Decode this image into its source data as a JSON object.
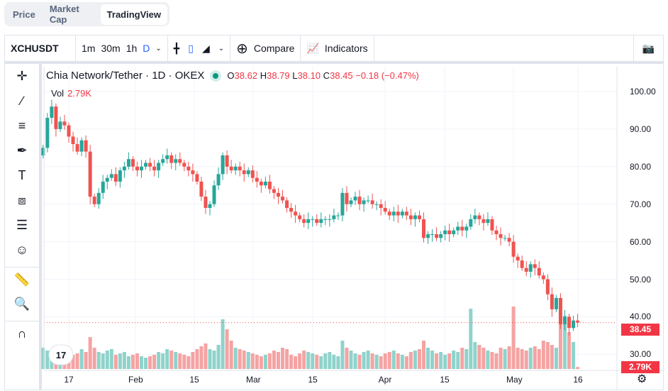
{
  "tabs": [
    "Price",
    "Market Cap",
    "TradingView"
  ],
  "toolbar": {
    "symbol": "XCHUSDT",
    "intervals": [
      "1m",
      "30m",
      "1h",
      "D"
    ],
    "compare": "Compare",
    "indicators": "Indicators"
  },
  "legend": {
    "title": "Chia Network/Tether · 1D · OKEX",
    "o_label": "O",
    "o": "38.62",
    "h_label": "H",
    "h": "38.79",
    "l_label": "L",
    "l": "38.10",
    "c_label": "C",
    "c": "38.45",
    "change": "−0.18 (−0.47%)",
    "vol_label": "Vol",
    "vol": "2.79K"
  },
  "colors": {
    "up": "#26a69a",
    "down": "#ef5350",
    "accent": "#2962ff"
  },
  "chart_data": {
    "type": "candlestick",
    "price_axis": [
      "100.00",
      "90.00",
      "80.00",
      "70.00",
      "60.00",
      "50.00",
      "40.00",
      "30.00"
    ],
    "time_axis": [
      "17",
      "Feb",
      "15",
      "Mar",
      "15",
      "Apr",
      "15",
      "May",
      "16"
    ],
    "last_price": "38.45",
    "last_volume": "2.79K",
    "close": [
      85,
      93,
      96,
      90,
      92,
      91,
      88,
      86,
      84,
      87,
      84,
      72,
      70,
      73,
      76,
      77,
      78,
      76,
      79,
      80,
      82,
      80,
      79,
      80,
      81,
      80,
      79,
      81,
      82,
      83,
      81,
      82,
      81,
      80,
      79,
      78,
      76,
      72,
      69,
      70,
      75,
      78,
      83,
      80,
      79,
      80,
      79,
      78,
      79,
      77,
      76,
      75,
      76,
      74,
      73,
      72,
      71,
      69,
      68,
      67,
      66,
      65,
      66,
      66,
      65,
      66,
      66,
      66,
      67,
      67,
      73,
      70,
      71,
      72,
      70,
      71,
      71,
      70,
      70,
      69,
      68,
      67,
      68,
      67,
      68,
      67,
      66,
      67,
      66,
      61,
      62,
      62,
      61,
      62,
      63,
      62,
      63,
      64,
      63,
      64,
      66,
      67,
      66,
      65,
      66,
      63,
      62,
      61,
      61,
      60,
      56,
      55,
      53,
      52,
      54,
      53,
      51,
      50,
      46,
      42,
      45,
      38,
      40,
      37,
      39,
      38.45
    ],
    "volume_k": [
      30,
      26,
      24,
      28,
      30,
      22,
      26,
      20,
      22,
      28,
      24,
      45,
      30,
      24,
      22,
      26,
      28,
      20,
      22,
      24,
      18,
      20,
      22,
      18,
      16,
      18,
      20,
      24,
      22,
      28,
      26,
      24,
      22,
      20,
      18,
      24,
      28,
      32,
      36,
      28,
      26,
      34,
      70,
      56,
      40,
      30,
      28,
      26,
      24,
      22,
      20,
      18,
      20,
      22,
      26,
      24,
      30,
      28,
      20,
      18,
      22,
      26,
      24,
      22,
      20,
      18,
      22,
      24,
      20,
      18,
      40,
      30,
      26,
      22,
      20,
      24,
      26,
      22,
      20,
      18,
      22,
      24,
      26,
      22,
      20,
      18,
      24,
      26,
      28,
      40,
      30,
      26,
      22,
      24,
      20,
      22,
      26,
      24,
      30,
      28,
      85,
      38,
      34,
      30,
      26,
      24,
      22,
      30,
      28,
      32,
      88,
      30,
      28,
      26,
      30,
      32,
      28,
      40,
      38,
      34,
      30,
      70,
      75,
      52,
      38,
      2.79
    ]
  }
}
